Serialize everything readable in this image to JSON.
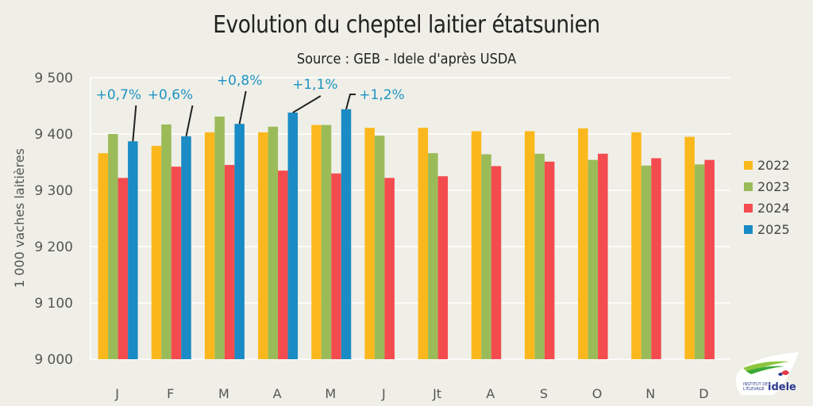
{
  "chart_data": {
    "type": "bar",
    "title": "Evolution du cheptel laitier étatsunien",
    "subtitle": "Source : GEB - Idele d'après USDA",
    "xlabel": "",
    "ylabel": "1 000  vaches laitières",
    "ylim": [
      9000,
      9500
    ],
    "yticks": [
      9000,
      9100,
      9200,
      9300,
      9400,
      9500
    ],
    "ytick_labels": [
      "9 000",
      "9 100",
      "9 200",
      "9 300",
      "9 400",
      "9 500"
    ],
    "grid": true,
    "legend_position": "right",
    "categories": [
      "J",
      "F",
      "M",
      "A",
      "M",
      "J",
      "Jt",
      "A",
      "S",
      "O",
      "N",
      "D"
    ],
    "series": [
      {
        "name": "2022",
        "color": "#fbb81d",
        "values": [
          9366,
          9379,
          9403,
          9403,
          9416,
          9411,
          9411,
          9405,
          9405,
          9410,
          9403,
          9395
        ]
      },
      {
        "name": "2023",
        "color": "#9bbb59",
        "values": [
          9400,
          9417,
          9431,
          9413,
          9416,
          9397,
          9366,
          9364,
          9365,
          9354,
          9344,
          9346
        ]
      },
      {
        "name": "2024",
        "color": "#f44b4f",
        "values": [
          9322,
          9342,
          9345,
          9335,
          9330,
          9322,
          9325,
          9343,
          9351,
          9365,
          9357,
          9354
        ]
      },
      {
        "name": "2025",
        "color": "#1a8bc4",
        "values": [
          9387,
          9396,
          9418,
          9438,
          9444,
          null,
          null,
          null,
          null,
          null,
          null,
          null
        ]
      }
    ],
    "annotations": [
      {
        "category_index": 0,
        "series": "2025",
        "text": "+0,7%"
      },
      {
        "category_index": 1,
        "series": "2025",
        "text": "+0,6%"
      },
      {
        "category_index": 2,
        "series": "2025",
        "text": "+0,8%"
      },
      {
        "category_index": 3,
        "series": "2025",
        "text": "+1,1%"
      },
      {
        "category_index": 4,
        "series": "2025",
        "text": "+1,2%"
      }
    ]
  },
  "logo": {
    "line1": "INSTITUT DE",
    "line2": "L'ÉLEVAGE",
    "brand": "idele"
  }
}
